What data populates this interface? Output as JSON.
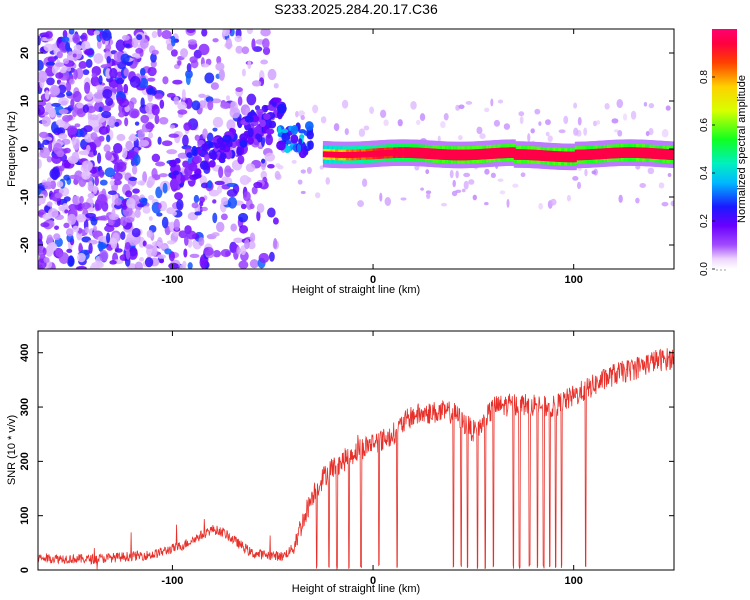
{
  "figure": {
    "title": "S233.2025.284.20.17.C36"
  },
  "chart_data": [
    {
      "type": "heatmap",
      "title": "S233.2025.284.20.17.C36",
      "xlabel": "Height of straight line (km)",
      "ylabel": "Frequency (Hz)",
      "xlim": [
        -167,
        150
      ],
      "ylim": [
        -25,
        25
      ],
      "xticks": [
        -100,
        0,
        100
      ],
      "yticks": [
        -20,
        -10,
        0,
        10,
        20
      ],
      "xtick_labels": [
        "-100",
        "0",
        "100"
      ],
      "ytick_labels": [
        "-20",
        "-10",
        "0",
        "10",
        "20"
      ],
      "colorbar": {
        "label": "Normalized spectral amplitude",
        "range": [
          0.0,
          1.0
        ],
        "ticks": [
          0.0,
          0.2,
          0.4,
          0.6,
          0.8
        ],
        "tick_labels": [
          "0.0",
          "0.2",
          "0.4",
          "0.6",
          "0.8"
        ],
        "colormap": "rainbow (white-violet-blue-cyan-green-yellow-orange-red-magenta)"
      },
      "features": {
        "noise_region_km": [
          -167,
          -48
        ],
        "noise_freq_hz": [
          -25,
          25
        ],
        "onset_km": -48,
        "ridge_freq_hz": -1,
        "ridge_start_km": -25,
        "ridge_end_km": 150,
        "peak_amplitude": 0.95
      }
    },
    {
      "type": "line",
      "xlabel": "Height of straight line (km)",
      "ylabel": "SNR (10 * v/v)",
      "xlim": [
        -167,
        150
      ],
      "ylim": [
        0,
        440
      ],
      "xticks": [
        -100,
        0,
        100
      ],
      "yticks": [
        0,
        100,
        200,
        300,
        400
      ],
      "xtick_labels": [
        "-100",
        "0",
        "100"
      ],
      "ytick_labels": [
        "0",
        "100",
        "200",
        "300",
        "400"
      ],
      "color": "#e8302a",
      "series": [
        {
          "name": "SNR",
          "x": [
            -167,
            -140,
            -110,
            -95,
            -80,
            -75,
            -60,
            -45,
            -40,
            -35,
            -30,
            -25,
            -20,
            -15,
            -10,
            -5,
            0,
            5,
            10,
            15,
            20,
            30,
            40,
            50,
            55,
            60,
            70,
            80,
            90,
            100,
            110,
            120,
            130,
            140,
            150
          ],
          "values": [
            22,
            20,
            28,
            45,
            75,
            70,
            30,
            25,
            40,
            90,
            140,
            170,
            190,
            200,
            215,
            225,
            235,
            240,
            250,
            270,
            285,
            290,
            290,
            255,
            270,
            300,
            305,
            305,
            300,
            320,
            340,
            360,
            370,
            385,
            390
          ]
        }
      ],
      "dropouts_km": [
        -28,
        -22,
        -18,
        -12,
        -6,
        3,
        12,
        40,
        44,
        47,
        52,
        56,
        60,
        70,
        73,
        78,
        82,
        85,
        88,
        91,
        94,
        106
      ]
    }
  ]
}
